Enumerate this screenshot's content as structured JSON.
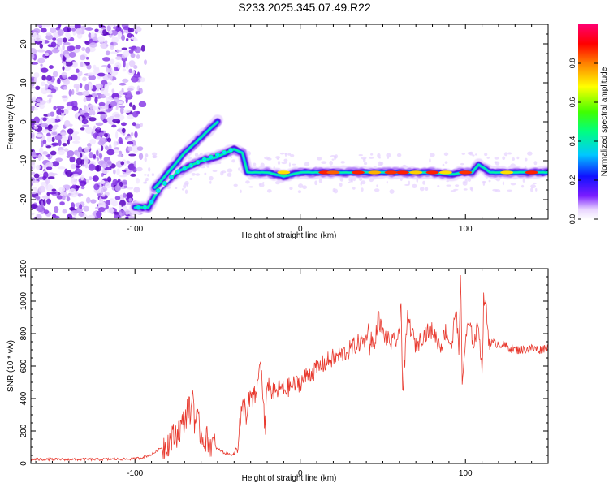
{
  "title": "S233.2025.345.07.49.R22",
  "chart_data": [
    {
      "type": "heatmap",
      "title": "S233.2025.345.07.49.R22",
      "xlabel": "Height of straight line (km)",
      "ylabel": "Frequency (Hz)",
      "xlim": [
        -163,
        150
      ],
      "ylim": [
        -25,
        25
      ],
      "xticks": [
        -100,
        0,
        100
      ],
      "xtick_labels": [
        "-100",
        "0",
        "100"
      ],
      "yticks": [
        -20,
        -10,
        0,
        10,
        20
      ],
      "ytick_labels": [
        "-20",
        "-10",
        "0",
        "10",
        "20"
      ],
      "noise_region": {
        "x": [
          -163,
          -93
        ],
        "y": [
          -25,
          25
        ]
      },
      "ridges": [
        {
          "name": "lower-branch",
          "points": [
            [
              -100,
              -22
            ],
            [
              -92,
              -22
            ],
            [
              -85,
              -17
            ],
            [
              -75,
              -13
            ],
            [
              -60,
              -10
            ],
            [
              -50,
              -9
            ],
            [
              -40,
              -7
            ],
            [
              -35,
              -8
            ],
            [
              -32,
              -13
            ],
            [
              -20,
              -13
            ],
            [
              -10,
              -14
            ],
            [
              0,
              -13
            ],
            [
              20,
              -13
            ],
            [
              40,
              -13
            ],
            [
              60,
              -13
            ],
            [
              80,
              -13
            ],
            [
              92,
              -13.5
            ],
            [
              98,
              -13
            ],
            [
              104,
              -13
            ],
            [
              108,
              -11
            ],
            [
              115,
              -13
            ],
            [
              130,
              -13
            ],
            [
              150,
              -13
            ]
          ]
        },
        {
          "name": "upper-branch",
          "points": [
            [
              -88,
              -17
            ],
            [
              -82,
              -14
            ],
            [
              -70,
              -8
            ],
            [
              -60,
              -4
            ],
            [
              -50,
              0
            ]
          ]
        }
      ],
      "colorbar": {
        "label": "Normalized spectral amplitude",
        "range": [
          0,
          1
        ],
        "ticks": [
          0.0,
          0.2,
          0.4,
          0.6,
          0.8
        ],
        "tick_labels": [
          "0.0",
          "0.2",
          "0.4",
          "0.6",
          "0.8"
        ]
      }
    },
    {
      "type": "line",
      "xlabel": "Height of straight line (km)",
      "ylabel": "SNR (10 * v/v)",
      "xlim": [
        -163,
        150
      ],
      "ylim": [
        0,
        1200
      ],
      "xticks": [
        -100,
        0,
        100
      ],
      "xtick_labels": [
        "-100",
        "0",
        "100"
      ],
      "yticks": [
        0,
        200,
        400,
        600,
        800,
        1000,
        1200
      ],
      "ytick_labels": [
        "0",
        "200",
        "400",
        "600",
        "800",
        "1000",
        "1200"
      ],
      "series": [
        {
          "name": "SNR",
          "color": "#e8392e",
          "x": [
            -163,
            -140,
            -120,
            -100,
            -95,
            -90,
            -85,
            -80,
            -75,
            -70,
            -68,
            -66,
            -65,
            -64,
            -62,
            -60,
            -55,
            -50,
            -45,
            -40,
            -38,
            -36,
            -34,
            -32,
            -30,
            -28,
            -26,
            -24,
            -22,
            -21,
            -20,
            -18,
            -15,
            -12,
            -10,
            -5,
            0,
            5,
            10,
            15,
            20,
            25,
            30,
            35,
            40,
            41,
            42,
            43,
            45,
            47,
            50,
            55,
            58,
            60,
            61,
            62,
            65,
            70,
            75,
            80,
            85,
            88,
            90,
            92,
            94,
            96,
            97,
            98,
            100,
            102,
            105,
            108,
            110,
            111,
            112,
            114,
            116,
            120,
            125,
            130,
            135,
            140,
            145,
            150
          ],
          "y": [
            25,
            25,
            25,
            28,
            40,
            55,
            90,
            130,
            180,
            260,
            350,
            300,
            480,
            270,
            250,
            180,
            130,
            90,
            60,
            55,
            130,
            280,
            350,
            300,
            420,
            380,
            460,
            650,
            300,
            180,
            520,
            450,
            430,
            470,
            450,
            480,
            500,
            550,
            580,
            620,
            650,
            670,
            700,
            740,
            760,
            870,
            720,
            780,
            700,
            910,
            800,
            740,
            760,
            780,
            1040,
            430,
            900,
            720,
            800,
            820,
            720,
            820,
            760,
            720,
            980,
            680,
            1200,
            480,
            760,
            860,
            740,
            860,
            560,
            1000,
            1010,
            760,
            740,
            740,
            720,
            700,
            700,
            710,
            700,
            720
          ]
        }
      ]
    }
  ]
}
